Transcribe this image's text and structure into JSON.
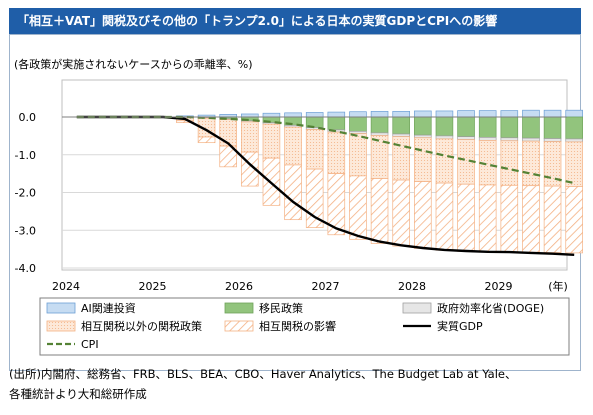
{
  "title": "「相互＋VAT」関税及びその他の「トランプ2.0」による日本の実質GDPとCPIへの影響",
  "source": {
    "line1": "(出所)内閣府、総務省、FRB、BLS、BEA、CBO、Haver Analytics、The Budget Lab at Yale、",
    "line2": "各種統計より大和総研作成"
  },
  "colors": {
    "title_bg": "#1f5ea8",
    "ai": "#c6dcf2",
    "immigration": "#92c47d",
    "doge": "#e6e6e6",
    "other_tariff": "#f4b183",
    "reciprocal": "#f4b183",
    "gdp": "#000000",
    "cpi": "#548235"
  },
  "chart_data": {
    "type": "bar",
    "ylabel": "(各政策が実施されないケースからの乖離率、%)",
    "ylim": [
      -4.0,
      0.3
    ],
    "yticks": [
      0.0,
      -1.0,
      -2.0,
      -3.0,
      -4.0
    ],
    "ytick_labels": [
      "0.0",
      "-1.0",
      "-2.0",
      "-3.0",
      "-4.0"
    ],
    "xticks": [
      "2024",
      "2025",
      "2026",
      "2027",
      "2028",
      "2029"
    ],
    "xunit": "(年)",
    "quarters_start": "2024Q1",
    "grid": true,
    "legend_position": "bottom",
    "series": [
      {
        "name": "AI関連投資",
        "kind": "bar",
        "style": "ai",
        "values": [
          0,
          0,
          0,
          0,
          0.01,
          0.03,
          0.05,
          0.07,
          0.08,
          0.1,
          0.11,
          0.12,
          0.13,
          0.14,
          0.15,
          0.15,
          0.16,
          0.16,
          0.17,
          0.17,
          0.17,
          0.18,
          0.18,
          0.18
        ]
      },
      {
        "name": "移民政策",
        "kind": "bar",
        "style": "immigration",
        "values": [
          0,
          0,
          0,
          0,
          0,
          0,
          -0.02,
          -0.05,
          -0.1,
          -0.15,
          -0.22,
          -0.28,
          -0.34,
          -0.38,
          -0.42,
          -0.45,
          -0.48,
          -0.5,
          -0.52,
          -0.54,
          -0.55,
          -0.56,
          -0.57,
          -0.58
        ]
      },
      {
        "name": "政府効率化省(DOGE)",
        "kind": "bar",
        "style": "doge",
        "values": [
          0,
          0,
          0,
          0,
          0,
          0,
          -0.01,
          -0.02,
          -0.03,
          -0.04,
          -0.05,
          -0.05,
          -0.06,
          -0.06,
          -0.07,
          -0.07,
          -0.07,
          -0.08,
          -0.08,
          -0.08,
          -0.08,
          -0.08,
          -0.08,
          -0.08
        ]
      },
      {
        "name": "相互関税以外の関税政策",
        "kind": "bar",
        "style": "other_tariff",
        "values": [
          0,
          0,
          0,
          0,
          0,
          -0.1,
          -0.5,
          -0.7,
          -0.8,
          -0.9,
          -1.0,
          -1.05,
          -1.1,
          -1.12,
          -1.14,
          -1.15,
          -1.16,
          -1.17,
          -1.18,
          -1.18,
          -1.18,
          -1.18,
          -1.18,
          -1.18
        ]
      },
      {
        "name": "相互関税の影響",
        "kind": "bar",
        "style": "reciprocal",
        "values": [
          0,
          0,
          0,
          0,
          0,
          -0.05,
          -0.15,
          -0.55,
          -0.9,
          -1.25,
          -1.45,
          -1.55,
          -1.62,
          -1.68,
          -1.72,
          -1.75,
          -1.77,
          -1.78,
          -1.78,
          -1.78,
          -1.77,
          -1.76,
          -1.76,
          -1.76
        ]
      },
      {
        "name": "実質GDP",
        "kind": "line",
        "style": "gdp",
        "values": [
          0,
          0,
          0,
          0,
          0,
          -0.05,
          -0.35,
          -0.7,
          -1.25,
          -1.75,
          -2.25,
          -2.65,
          -2.95,
          -3.15,
          -3.3,
          -3.4,
          -3.47,
          -3.52,
          -3.55,
          -3.57,
          -3.58,
          -3.6,
          -3.62,
          -3.65
        ]
      },
      {
        "name": "CPI",
        "kind": "line",
        "style": "cpi",
        "values": [
          0,
          0,
          0,
          0,
          0,
          0,
          -0.02,
          -0.05,
          -0.08,
          -0.13,
          -0.19,
          -0.27,
          -0.38,
          -0.5,
          -0.63,
          -0.76,
          -0.89,
          -1.02,
          -1.14,
          -1.26,
          -1.38,
          -1.5,
          -1.62,
          -1.75
        ]
      }
    ]
  }
}
